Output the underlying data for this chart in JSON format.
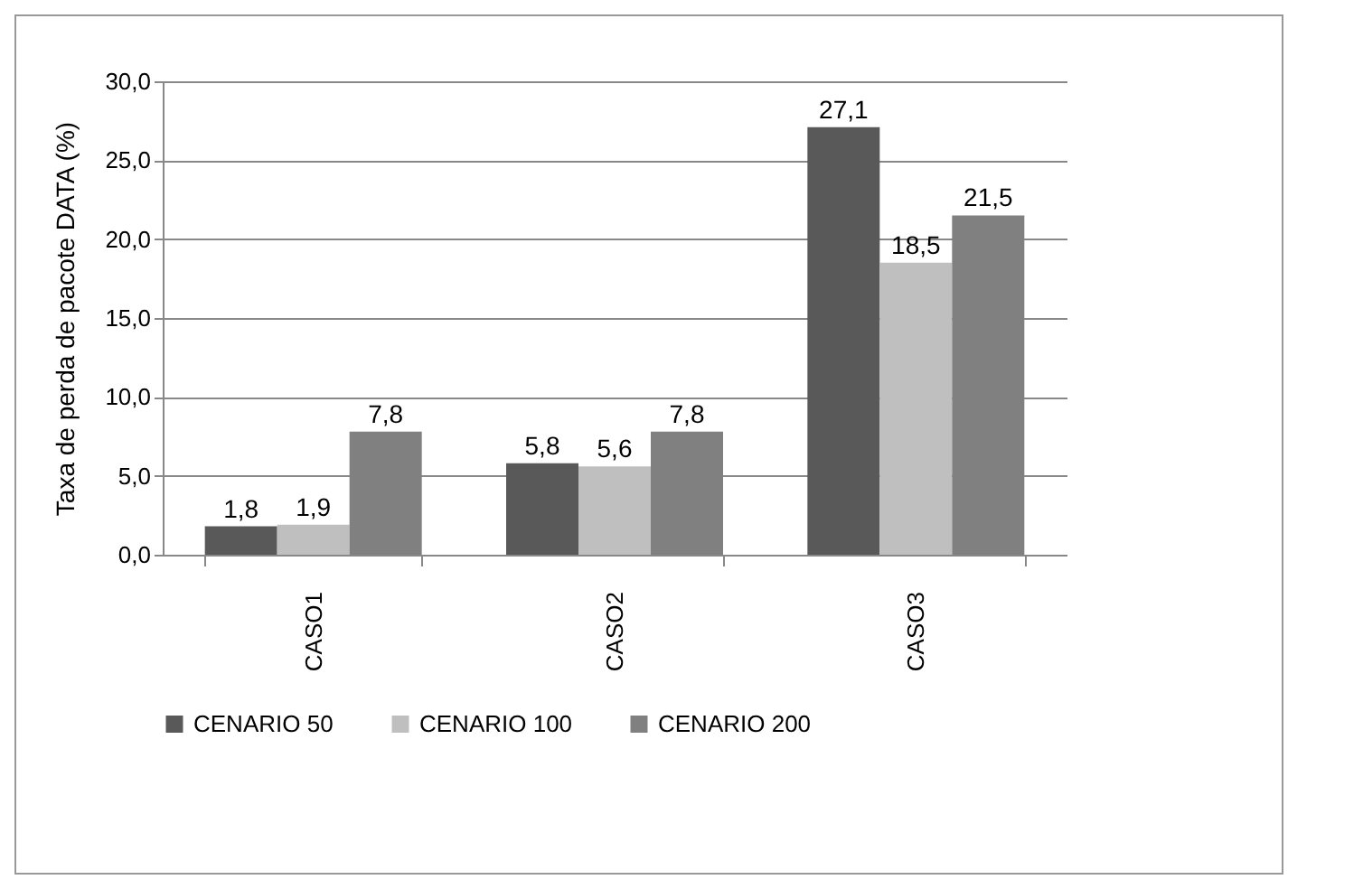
{
  "chart_data": {
    "type": "bar",
    "ylabel": "Taxa de perda de pacote DATA (%)",
    "categories": [
      "CASO1",
      "CASO2",
      "CASO3"
    ],
    "series": [
      {
        "name": "CENARIO 50",
        "color": "#595959",
        "values": [
          1.8,
          5.8,
          27.1
        ],
        "value_labels": [
          "1,8",
          "5,8",
          "27,1"
        ]
      },
      {
        "name": "CENARIO 100",
        "color": "#bfbfbf",
        "values": [
          1.9,
          5.6,
          18.5
        ],
        "value_labels": [
          "1,9",
          "5,6",
          "18,5"
        ]
      },
      {
        "name": "CENARIO 200",
        "color": "#808080",
        "values": [
          7.8,
          7.8,
          21.5
        ],
        "value_labels": [
          "7,8",
          "7,8",
          "21,5"
        ]
      }
    ],
    "ylim": [
      0,
      30
    ],
    "yticks": [
      {
        "value": 0,
        "label": "0,0"
      },
      {
        "value": 5,
        "label": "5,0"
      },
      {
        "value": 10,
        "label": "10,0"
      },
      {
        "value": 15,
        "label": "15,0"
      },
      {
        "value": 20,
        "label": "20,0"
      },
      {
        "value": 25,
        "label": "25,0"
      },
      {
        "value": 30,
        "label": "30,0"
      }
    ],
    "grid": "y",
    "legend": "bottom"
  }
}
